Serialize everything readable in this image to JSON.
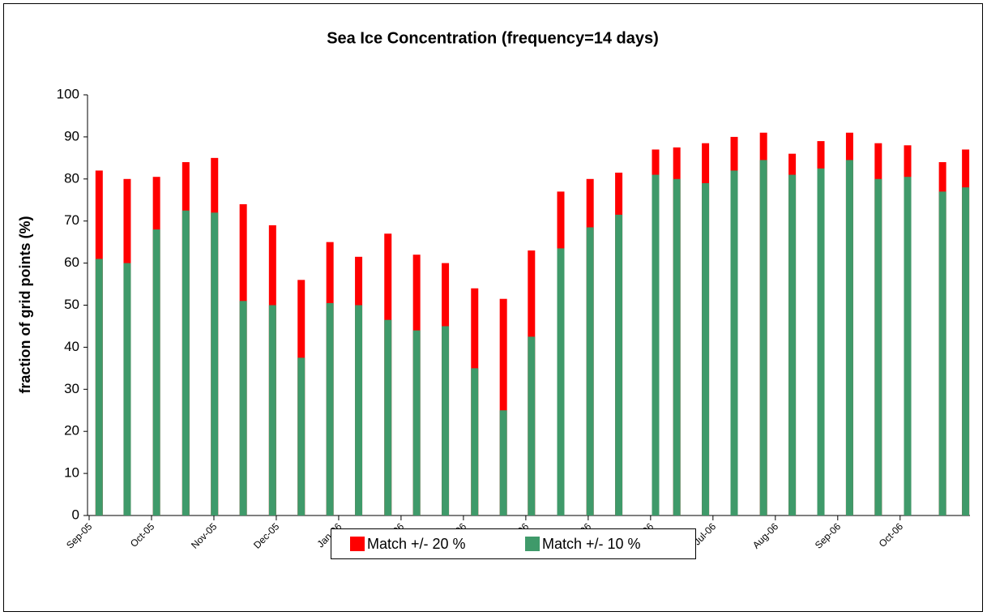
{
  "chart_data": {
    "type": "bar",
    "title": "Sea Ice Concentration (frequency=14 days)",
    "y_label": "fraction of grid points (%)",
    "x": [
      0.16,
      0.61,
      1.08,
      1.55,
      2.01,
      2.47,
      2.94,
      3.4,
      3.86,
      4.32,
      4.79,
      5.25,
      5.71,
      6.18,
      6.64,
      7.09,
      7.56,
      8.03,
      8.49,
      9.08,
      9.42,
      9.88,
      10.34,
      10.81,
      11.27,
      11.73,
      12.19,
      12.65,
      13.12,
      13.68,
      14.05
    ],
    "xlim": [
      0,
      14.12
    ],
    "xticks": [
      {
        "value": 0,
        "label": "Sep-05"
      },
      {
        "value": 1,
        "label": "Oct-05"
      },
      {
        "value": 2,
        "label": "Nov-05"
      },
      {
        "value": 3,
        "label": "Dec-05"
      },
      {
        "value": 4,
        "label": "Jan-06"
      },
      {
        "value": 5,
        "label": "Feb-06"
      },
      {
        "value": 6,
        "label": "Mar-06"
      },
      {
        "value": 7,
        "label": "Apr-06"
      },
      {
        "value": 8,
        "label": "May-06"
      },
      {
        "value": 9,
        "label": "Jun-06"
      },
      {
        "value": 10,
        "label": "Jul-06"
      },
      {
        "value": 11,
        "label": "Aug-06"
      },
      {
        "value": 12,
        "label": "Sep-06"
      },
      {
        "value": 13,
        "label": "Oct-06"
      }
    ],
    "ylim": [
      0,
      100
    ],
    "yticks": [
      0,
      10,
      20,
      30,
      40,
      50,
      60,
      70,
      80,
      90,
      100
    ],
    "grid": false,
    "legend": "bottom",
    "series": [
      {
        "name": "Match +/- 20 %",
        "color": "#ff0000",
        "values": [
          82,
          80,
          80.5,
          84,
          85,
          74,
          69,
          56,
          65,
          61.5,
          67,
          62,
          60,
          54,
          51.5,
          63,
          77,
          80,
          81.5,
          87,
          87.5,
          88.5,
          90,
          91,
          86,
          89,
          91,
          88.5,
          88,
          84,
          87
        ]
      },
      {
        "name": "Match +/- 10 %",
        "color": "#3f9a6a",
        "values": [
          61,
          60,
          68,
          72.5,
          72,
          51,
          50,
          37.5,
          50.5,
          50,
          46.5,
          44,
          45,
          35,
          25,
          42.5,
          63.5,
          68.5,
          71.5,
          81,
          80,
          79,
          82,
          84.5,
          81,
          82.5,
          84.5,
          80,
          80.5,
          77,
          78
        ]
      }
    ]
  }
}
